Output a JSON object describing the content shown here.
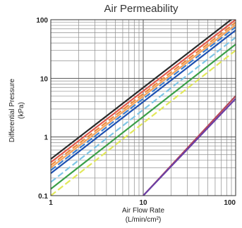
{
  "chart_data": {
    "type": "line",
    "title": "Air Permeability",
    "xlabel_line1": "Air Flow Rate",
    "xlabel_line2": "(L/min/cm²)",
    "ylabel_line1": "Differential Pressure",
    "ylabel_line2": "(kPa)",
    "x_scale": "log",
    "y_scale": "log",
    "xlim": [
      1,
      100
    ],
    "ylim": [
      0.1,
      100
    ],
    "x_ticks": [
      "1",
      "10",
      "100"
    ],
    "y_ticks": [
      "0.1",
      "1",
      "10",
      "100"
    ],
    "grid": true,
    "legend": "none",
    "series": [
      {
        "color": "#2b2b2b",
        "dash": "solid",
        "x": [
          1,
          100
        ],
        "y": [
          0.42,
          115
        ]
      },
      {
        "color": "#e35a4c",
        "dash": "solid",
        "x": [
          1,
          100
        ],
        "y": [
          0.37,
          100
        ]
      },
      {
        "color": "#ee8a3c",
        "dash": "dashed",
        "x": [
          1,
          100
        ],
        "y": [
          0.33,
          90
        ]
      },
      {
        "color": "#f3a35c",
        "dash": "solid",
        "x": [
          1,
          100
        ],
        "y": [
          0.3,
          82
        ]
      },
      {
        "color": "#3f7fd0",
        "dash": "dashed",
        "x": [
          1,
          100
        ],
        "y": [
          0.27,
          75
        ]
      },
      {
        "color": "#1c4fb0",
        "dash": "solid",
        "x": [
          1,
          100
        ],
        "y": [
          0.24,
          66
        ]
      },
      {
        "color": "#7fc6e6",
        "dash": "dashed",
        "x": [
          1,
          100
        ],
        "y": [
          0.17,
          50
        ]
      },
      {
        "color": "#3aa047",
        "dash": "solid",
        "x": [
          1,
          100
        ],
        "y": [
          0.13,
          38
        ]
      },
      {
        "color": "#e2e85a",
        "dash": "dashed",
        "x": [
          1,
          100
        ],
        "y": [
          0.1,
          30
        ]
      },
      {
        "color": "#b5485a",
        "dash": "solid",
        "x": [
          10,
          100
        ],
        "y": [
          0.1,
          5.0
        ]
      },
      {
        "color": "#6a3fa6",
        "dash": "solid",
        "x": [
          10,
          100
        ],
        "y": [
          0.1,
          4.5
        ]
      }
    ]
  }
}
